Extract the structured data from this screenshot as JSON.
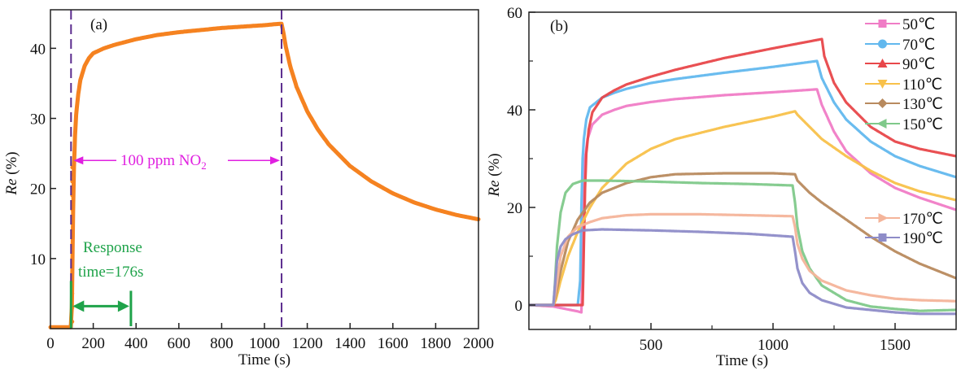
{
  "chart_data": [
    {
      "panel": "(a)",
      "type": "line",
      "title": "",
      "xlabel": "Time (s)",
      "ylabel_italic": "Re",
      "ylabel_rest": " (%)",
      "xlim": [
        0,
        2000
      ],
      "ylim": [
        0,
        45.5
      ],
      "xticks": [
        0,
        200,
        400,
        600,
        800,
        1000,
        1200,
        1400,
        1600,
        1800,
        2000
      ],
      "yticks": [
        10,
        20,
        30,
        40
      ],
      "grid": false,
      "series": [
        {
          "name": "100 ppm NO2 response",
          "color": "#F58220",
          "x": [
            0,
            50,
            95,
            100,
            103,
            106,
            110,
            115,
            120,
            130,
            140,
            160,
            180,
            200,
            250,
            300,
            400,
            500,
            600,
            700,
            800,
            900,
            1000,
            1050,
            1080,
            1090,
            1100,
            1120,
            1150,
            1200,
            1250,
            1300,
            1400,
            1500,
            1600,
            1700,
            1800,
            1900,
            2000
          ],
          "y": [
            0.2,
            0.2,
            0.2,
            3,
            10,
            17,
            23,
            27.5,
            30.5,
            33.5,
            35.5,
            37.5,
            38.6,
            39.3,
            40.0,
            40.5,
            41.3,
            41.9,
            42.3,
            42.6,
            42.9,
            43.1,
            43.3,
            43.45,
            43.5,
            42.0,
            40.2,
            37.5,
            34.5,
            31.0,
            28.4,
            26.3,
            23.2,
            21.0,
            19.3,
            18.0,
            17.0,
            16.2,
            15.6
          ]
        }
      ],
      "annotations": {
        "panel_label": "(a)",
        "gas_label_prefix": "100 ppm NO",
        "gas_label_sub": "2",
        "gas_window_start": 100,
        "gas_window_end": 1080,
        "gas_arrow_y": 24,
        "response_label_line1": "Response",
        "response_label_line2": "time=176s",
        "response_start": 100,
        "response_end": 376,
        "response_arrow_y": 3.2,
        "dashed_line_color": "#5B2C8E",
        "gas_annotation_color": "#E020E0",
        "response_annotation_color": "#1FA34A"
      }
    },
    {
      "panel": "(b)",
      "type": "line",
      "title": "",
      "xlabel": "Time (s)",
      "ylabel_italic": "Re",
      "ylabel_rest": " (%)",
      "xlim": [
        0,
        1750
      ],
      "ylim": [
        -5,
        60
      ],
      "xticks_major": [
        500,
        1000,
        1500
      ],
      "xticks_minor": [
        250,
        750,
        1250
      ],
      "yticks_major": [
        0,
        20,
        40,
        60
      ],
      "yticks_minor": [
        10,
        30,
        50
      ],
      "grid": false,
      "legend_location": "top-right",
      "panel_label": "(b)",
      "series": [
        {
          "name": "50℃",
          "color": "#F07CC6",
          "marker": "square",
          "x": [
            0,
            100,
            200,
            215,
            220,
            225,
            230,
            240,
            260,
            300,
            350,
            400,
            500,
            600,
            800,
            1000,
            1180,
            1200,
            1250,
            1300,
            1400,
            1500,
            1600,
            1750
          ],
          "y": [
            0,
            -0.3,
            -1.3,
            -1.5,
            10,
            24,
            30,
            34,
            37,
            39,
            40,
            40.8,
            41.6,
            42.2,
            43,
            43.6,
            44.2,
            41,
            35.5,
            31.5,
            27,
            24,
            22,
            19.5
          ]
        },
        {
          "name": "70℃",
          "color": "#62B8EE",
          "marker": "circle",
          "x": [
            0,
            100,
            200,
            210,
            215,
            220,
            225,
            235,
            250,
            300,
            350,
            400,
            500,
            600,
            800,
            1000,
            1180,
            1200,
            1250,
            1300,
            1400,
            1500,
            1600,
            1750
          ],
          "y": [
            0,
            0,
            0,
            5,
            20,
            30,
            34,
            38,
            40.5,
            42.5,
            43.5,
            44.3,
            45.5,
            46.3,
            47.6,
            48.8,
            50,
            46.5,
            41.5,
            38,
            33.5,
            30.5,
            28.5,
            26.2
          ]
        },
        {
          "name": "90℃",
          "color": "#E8474A",
          "marker": "triangle-up",
          "x": [
            0,
            100,
            200,
            220,
            225,
            230,
            235,
            245,
            260,
            300,
            350,
            400,
            500,
            600,
            800,
            1000,
            1200,
            1210,
            1250,
            1300,
            1400,
            1500,
            1600,
            1750
          ],
          "y": [
            0,
            0,
            0,
            0,
            12,
            24,
            31,
            36,
            39.5,
            42.5,
            44,
            45.2,
            46.8,
            48.2,
            50.6,
            52.6,
            54.5,
            51,
            45.5,
            41.5,
            36.5,
            33.5,
            32,
            30.5
          ]
        },
        {
          "name": "110℃",
          "color": "#F8C14A",
          "marker": "triangle-down",
          "x": [
            0,
            100,
            110,
            130,
            160,
            200,
            250,
            300,
            400,
            500,
            600,
            800,
            1000,
            1090,
            1100,
            1150,
            1200,
            1300,
            1400,
            1500,
            1600,
            1750
          ],
          "y": [
            0,
            0,
            1,
            5,
            10,
            15,
            20,
            24,
            29,
            32,
            34,
            36.5,
            38.6,
            39.7,
            39,
            36.5,
            34,
            30.5,
            27.5,
            25,
            23.3,
            21.5
          ]
        },
        {
          "name": "130℃",
          "color": "#B88A5E",
          "marker": "diamond",
          "x": [
            0,
            100,
            110,
            130,
            160,
            200,
            250,
            300,
            400,
            500,
            600,
            800,
            1000,
            1090,
            1100,
            1150,
            1200,
            1300,
            1400,
            1500,
            1600,
            1750
          ],
          "y": [
            0,
            0,
            2,
            7,
            13,
            17.5,
            21,
            23,
            25,
            26.2,
            26.8,
            27,
            27,
            26.8,
            25.5,
            23,
            21,
            17.5,
            14,
            11,
            8.5,
            5.5
          ]
        },
        {
          "name": "150℃",
          "color": "#7FC98A",
          "marker": "triangle-left",
          "x": [
            0,
            100,
            105,
            115,
            130,
            150,
            180,
            220,
            300,
            500,
            700,
            900,
            1080,
            1090,
            1100,
            1120,
            1150,
            1200,
            1300,
            1400,
            1500,
            1600,
            1750
          ],
          "y": [
            0,
            0,
            3,
            12,
            19,
            23,
            24.8,
            25.5,
            25.5,
            25.3,
            25,
            24.8,
            24.5,
            21,
            16,
            11,
            7.5,
            4,
            1,
            -0.3,
            -0.8,
            -1.2,
            -1
          ]
        },
        {
          "name": "170℃",
          "color": "#F4B49A",
          "marker": "triangle-right",
          "x": [
            0,
            100,
            110,
            130,
            160,
            200,
            250,
            300,
            400,
            500,
            700,
            900,
            1080,
            1090,
            1100,
            1120,
            1150,
            1200,
            1300,
            1400,
            1500,
            1600,
            1750
          ],
          "y": [
            0,
            0,
            3,
            10,
            14,
            16,
            17,
            17.8,
            18.4,
            18.6,
            18.6,
            18.4,
            18.2,
            16,
            12.5,
            9.5,
            7,
            5,
            3,
            2,
            1.3,
            1,
            0.8
          ]
        },
        {
          "name": "190℃",
          "color": "#8E8CC8",
          "marker": "square",
          "x": [
            0,
            100,
            105,
            115,
            130,
            150,
            180,
            220,
            300,
            400,
            500,
            700,
            900,
            1080,
            1090,
            1100,
            1120,
            1150,
            1200,
            1300,
            1400,
            1500,
            1600,
            1750
          ],
          "y": [
            0,
            0,
            3,
            9,
            12,
            13.5,
            14.5,
            15.3,
            15.5,
            15.4,
            15.3,
            15,
            14.6,
            14,
            11,
            7.5,
            4.5,
            2.5,
            1,
            -0.5,
            -1,
            -1.5,
            -1.8,
            -1.8
          ]
        }
      ]
    }
  ]
}
